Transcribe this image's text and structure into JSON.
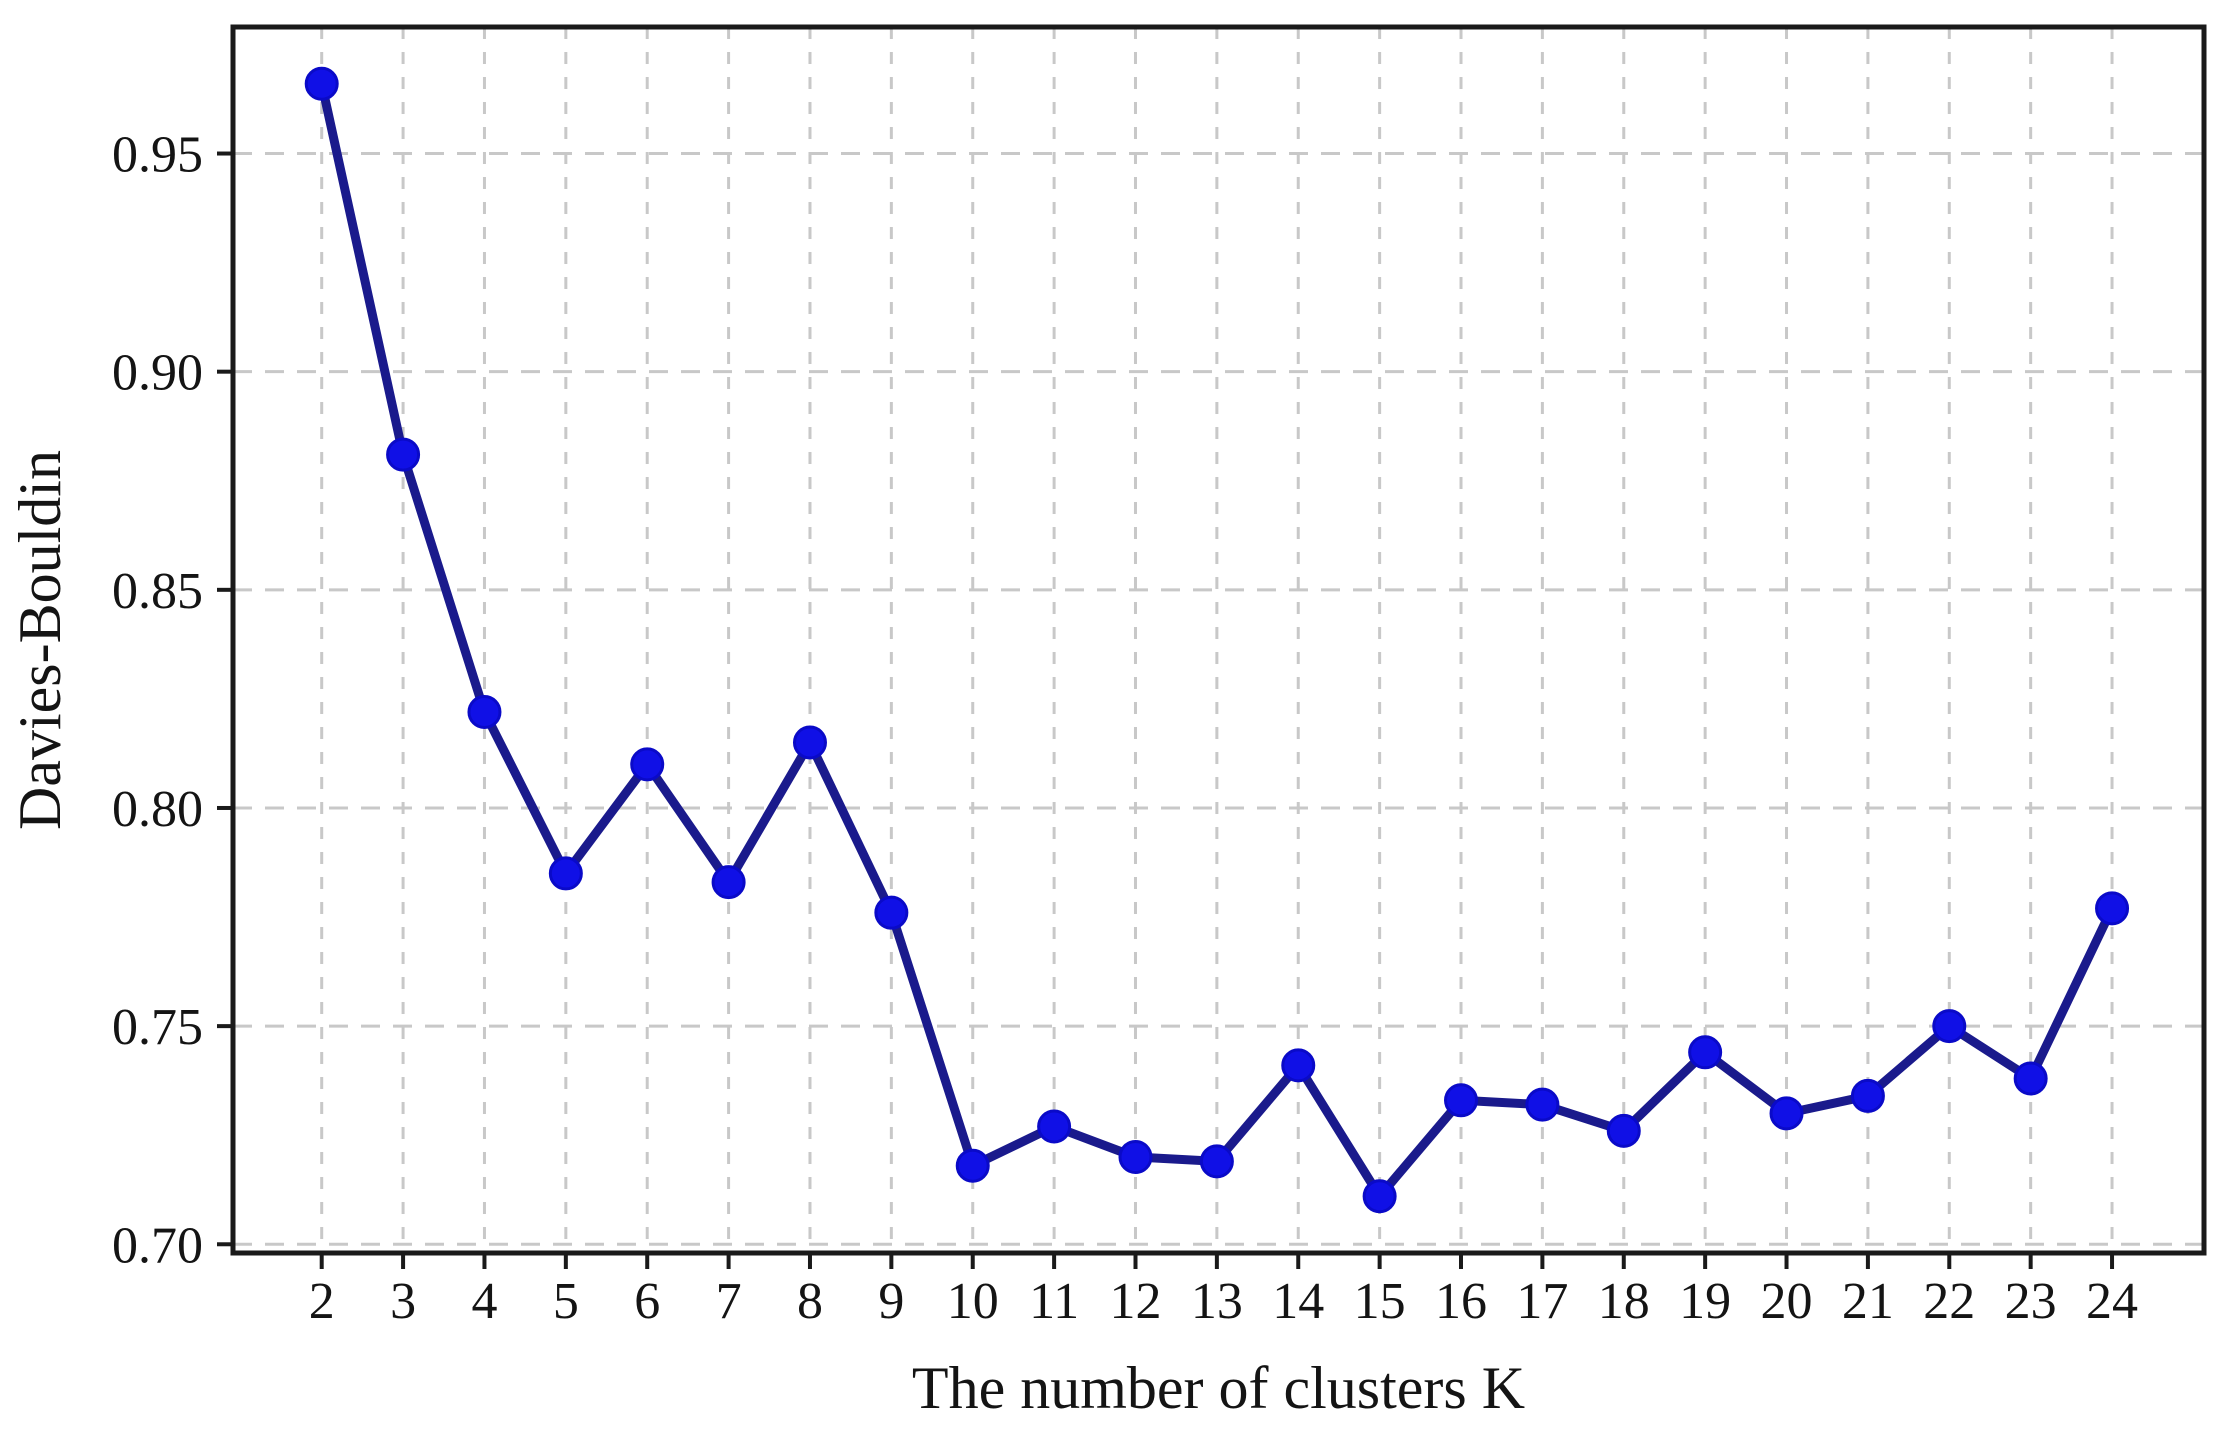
{
  "figure": {
    "description": "Line chart of Davies-Bouldin index versus number of clusters K"
  },
  "chart_data": {
    "type": "line",
    "title": "",
    "xlabel": "The number of clusters K",
    "ylabel": "Davies-Bouldin",
    "x": [
      2,
      3,
      4,
      5,
      6,
      7,
      8,
      9,
      10,
      11,
      12,
      13,
      14,
      15,
      16,
      17,
      18,
      19,
      20,
      21,
      22,
      23,
      24
    ],
    "series": [
      {
        "name": "Davies-Bouldin index",
        "values": [
          0.966,
          0.881,
          0.822,
          0.785,
          0.81,
          0.783,
          0.815,
          0.776,
          0.718,
          0.727,
          0.72,
          0.719,
          0.741,
          0.711,
          0.733,
          0.732,
          0.726,
          0.744,
          0.73,
          0.734,
          0.75,
          0.738,
          0.777
        ]
      }
    ],
    "xticks": [
      2,
      3,
      4,
      5,
      6,
      7,
      8,
      9,
      10,
      11,
      12,
      13,
      14,
      15,
      16,
      17,
      18,
      19,
      20,
      21,
      22,
      23,
      24
    ],
    "ytick_values": [
      0.7,
      0.75,
      0.8,
      0.85,
      0.9,
      0.95
    ],
    "ytick_labels": [
      "0.70",
      "0.75",
      "0.80",
      "0.85",
      "0.90",
      "0.95"
    ],
    "xlim": [
      0.91,
      25.13
    ],
    "ylim": [
      0.698,
      0.979
    ],
    "grid": true,
    "grid_style": "dashed",
    "legend": "none",
    "marker": "circle",
    "colors": {
      "line": "#1a1a8c",
      "marker_fill": "#1010e6",
      "marker_edge": "#0a0ac8",
      "grid": "#c8c8c8",
      "spine": "#1a1a1a",
      "text": "#141414",
      "background": "#ffffff"
    }
  }
}
